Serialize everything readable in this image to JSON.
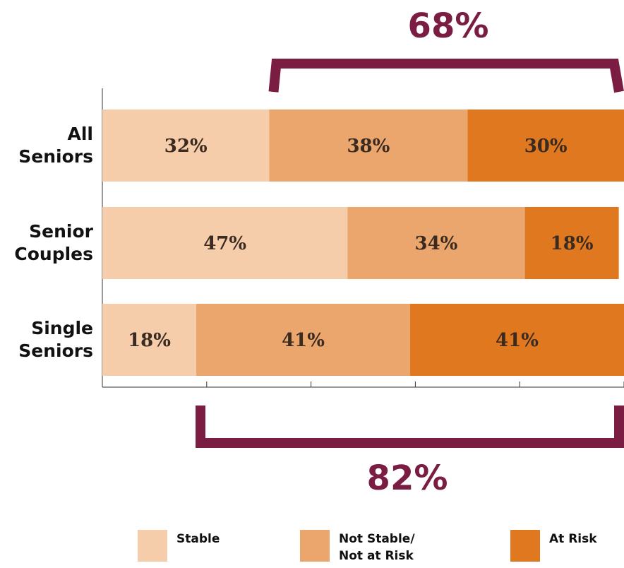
{
  "chart_data": {
    "type": "stacked-bar-horizontal",
    "categories": [
      "All Seniors",
      "Senior Couples",
      "Single Seniors"
    ],
    "series": [
      {
        "name": "Stable",
        "color": "#f5cdab",
        "values": [
          32,
          47,
          18
        ],
        "value_labels": [
          "32%",
          "47%",
          "18%"
        ]
      },
      {
        "name": "Not Stable/ Not at Risk",
        "color": "#eba66d",
        "values": [
          38,
          34,
          41
        ],
        "value_labels": [
          "38%",
          "34%",
          "41%"
        ]
      },
      {
        "name": "At Risk",
        "color": "#e07820",
        "values": [
          30,
          18,
          41
        ],
        "value_labels": [
          "30%",
          "18%",
          "41%"
        ]
      }
    ],
    "xlim": [
      0,
      100
    ],
    "xticks": [
      0,
      20,
      40,
      60,
      80,
      100
    ],
    "annotations": [
      "68%",
      "82%"
    ],
    "annotation_color": "#7b1c43"
  }
}
